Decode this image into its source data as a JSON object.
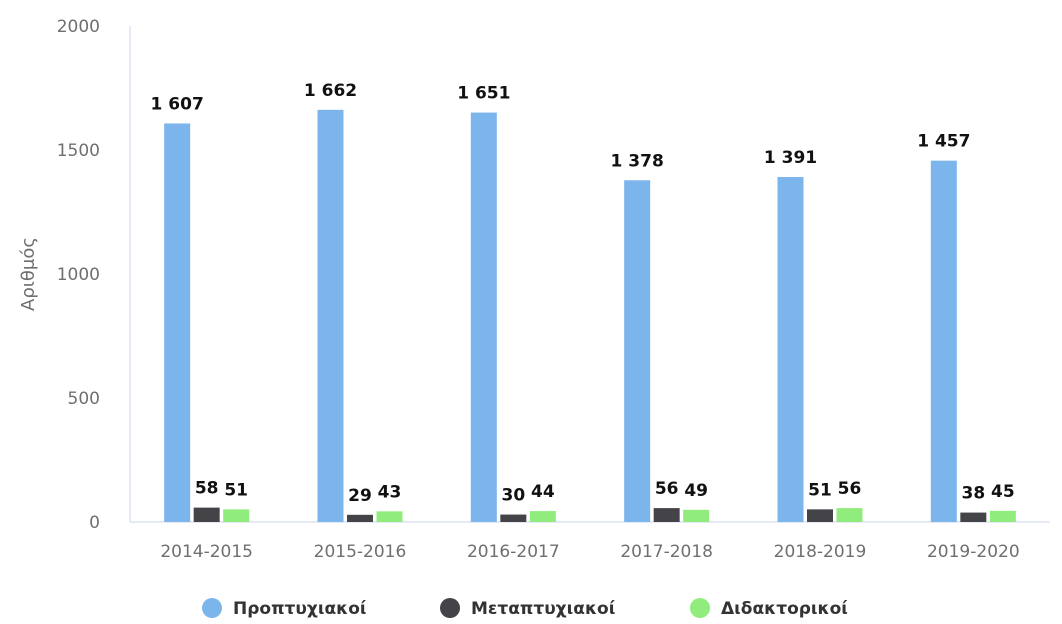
{
  "chart_data": {
    "type": "bar",
    "title": "",
    "xlabel": "",
    "ylabel": "Αριθμός",
    "ylim": [
      0,
      2000
    ],
    "yticks": [
      0,
      500,
      1000,
      1500,
      2000
    ],
    "grid": false,
    "legend_position": "bottom",
    "categories": [
      "2014-2015",
      "2015-2016",
      "2016-2017",
      "2017-2018",
      "2018-2019",
      "2019-2020"
    ],
    "series": [
      {
        "name": "Προπτυχιακοί",
        "color": "#7cb5ec",
        "values": [
          1607,
          1662,
          1651,
          1378,
          1391,
          1457
        ],
        "labels": [
          "1 607",
          "1 662",
          "1 651",
          "1 378",
          "1 391",
          "1 457"
        ]
      },
      {
        "name": "Μεταπτυχιακοί",
        "color": "#434348",
        "values": [
          58,
          29,
          30,
          56,
          51,
          38
        ],
        "labels": [
          "58",
          "29",
          "30",
          "56",
          "51",
          "38"
        ]
      },
      {
        "name": "Διδακτορικοί",
        "color": "#90ed7d",
        "values": [
          51,
          43,
          44,
          49,
          56,
          45
        ],
        "labels": [
          "51",
          "43",
          "44",
          "49",
          "56",
          "45"
        ]
      }
    ]
  }
}
